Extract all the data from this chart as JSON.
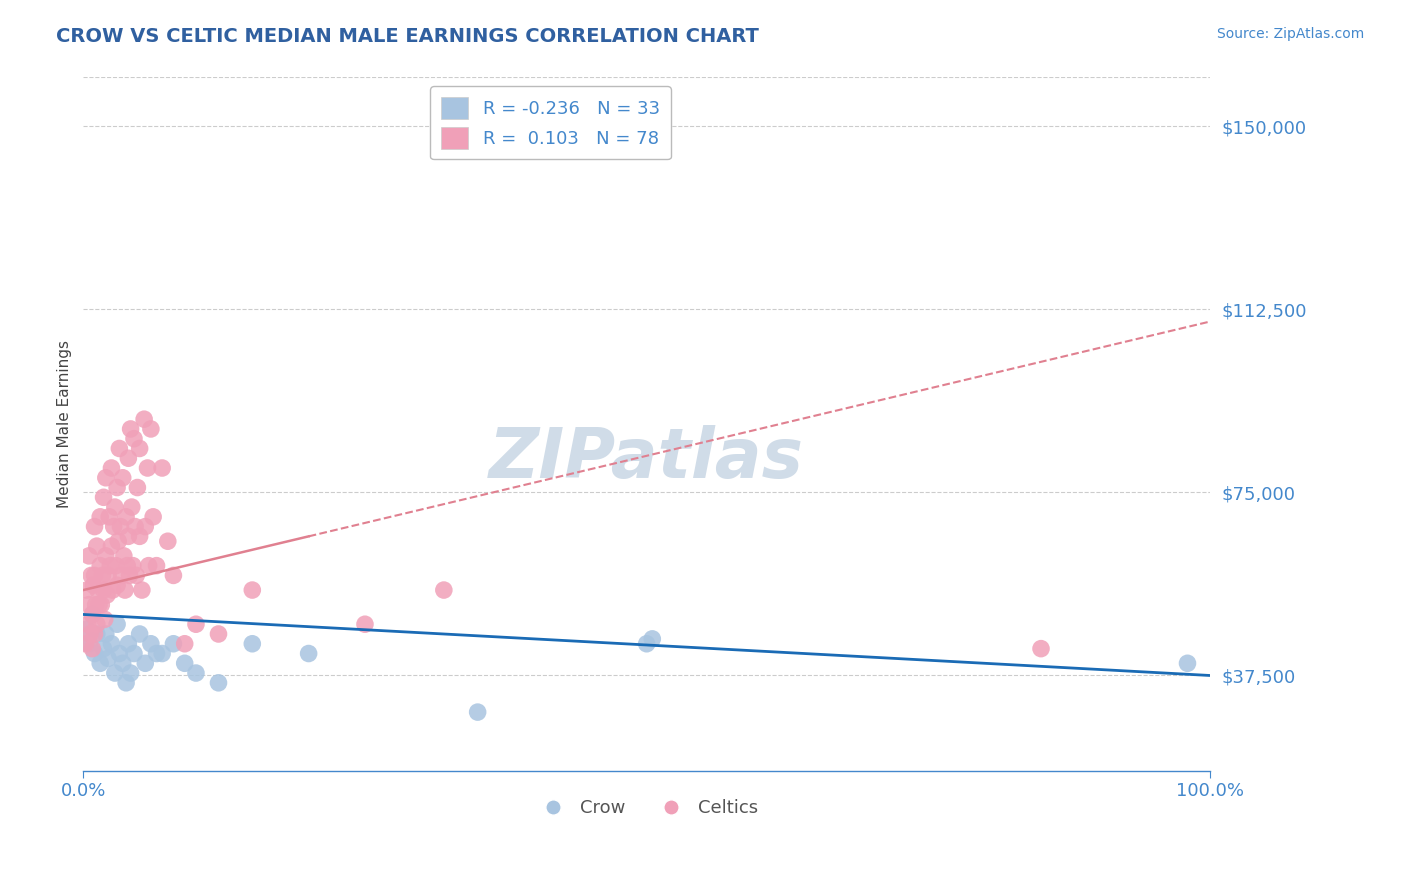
{
  "title": "CROW VS CELTIC MEDIAN MALE EARNINGS CORRELATION CHART",
  "source": "Source: ZipAtlas.com",
  "xlabel": "",
  "ylabel": "Median Male Earnings",
  "xlim": [
    0,
    100
  ],
  "ylim": [
    18000,
    160000
  ],
  "yticks": [
    37500,
    75000,
    112500,
    150000
  ],
  "ytick_labels": [
    "$37,500",
    "$75,000",
    "$112,500",
    "$150,000"
  ],
  "xtick_labels": [
    "0.0%",
    "100.0%"
  ],
  "crow_color": "#a8c4e0",
  "celtic_color": "#f0a0b8",
  "crow_line_color": "#1a6bb5",
  "celtic_line_color": "#e08090",
  "title_color": "#3060a0",
  "axis_color": "#4488cc",
  "grid_color": "#cccccc",
  "watermark": "ZIPatlas",
  "watermark_color": "#d0dce8",
  "legend_r_crow": "-0.236",
  "legend_n_crow": "33",
  "legend_r_celtic": "0.103",
  "legend_n_celtic": "78",
  "crow_x": [
    0.3,
    0.5,
    0.8,
    1.0,
    1.2,
    1.5,
    1.8,
    2.0,
    2.2,
    2.5,
    2.8,
    3.0,
    3.2,
    3.5,
    3.8,
    4.0,
    4.2,
    4.5,
    5.0,
    5.5,
    6.0,
    6.5,
    7.0,
    8.0,
    9.0,
    10.0,
    12.0,
    15.0,
    20.0,
    35.0,
    50.0,
    50.5,
    98.0
  ],
  "crow_y": [
    47000,
    44000,
    50000,
    42000,
    46000,
    40000,
    43000,
    46000,
    41000,
    44000,
    38000,
    48000,
    42000,
    40000,
    36000,
    44000,
    38000,
    42000,
    46000,
    40000,
    44000,
    42000,
    42000,
    44000,
    40000,
    38000,
    36000,
    44000,
    42000,
    30000,
    44000,
    45000,
    40000
  ],
  "celtic_x": [
    0.2,
    0.3,
    0.4,
    0.5,
    0.5,
    0.6,
    0.7,
    0.8,
    0.8,
    0.9,
    1.0,
    1.0,
    1.0,
    1.1,
    1.2,
    1.2,
    1.3,
    1.4,
    1.5,
    1.5,
    1.6,
    1.7,
    1.8,
    1.8,
    1.9,
    2.0,
    2.0,
    2.1,
    2.2,
    2.3,
    2.4,
    2.5,
    2.5,
    2.6,
    2.7,
    2.8,
    2.9,
    3.0,
    3.0,
    3.1,
    3.2,
    3.3,
    3.4,
    3.5,
    3.6,
    3.7,
    3.8,
    3.9,
    4.0,
    4.0,
    4.1,
    4.2,
    4.3,
    4.4,
    4.5,
    4.6,
    4.7,
    4.8,
    5.0,
    5.0,
    5.2,
    5.4,
    5.5,
    5.7,
    5.8,
    6.0,
    6.2,
    6.5,
    7.0,
    7.5,
    8.0,
    9.0,
    10.0,
    12.0,
    15.0,
    25.0,
    32.0,
    85.0
  ],
  "celtic_y": [
    44000,
    55000,
    48000,
    62000,
    52000,
    46000,
    58000,
    50000,
    43000,
    56000,
    68000,
    58000,
    46000,
    52000,
    64000,
    48000,
    55000,
    52000,
    70000,
    60000,
    52000,
    58000,
    74000,
    55000,
    49000,
    78000,
    62000,
    54000,
    58000,
    70000,
    60000,
    80000,
    64000,
    55000,
    68000,
    72000,
    60000,
    76000,
    56000,
    65000,
    84000,
    68000,
    58000,
    78000,
    62000,
    55000,
    70000,
    60000,
    82000,
    66000,
    58000,
    88000,
    72000,
    60000,
    86000,
    68000,
    58000,
    76000,
    84000,
    66000,
    55000,
    90000,
    68000,
    80000,
    60000,
    88000,
    70000,
    60000,
    80000,
    65000,
    58000,
    44000,
    48000,
    46000,
    55000,
    48000,
    55000,
    43000
  ]
}
